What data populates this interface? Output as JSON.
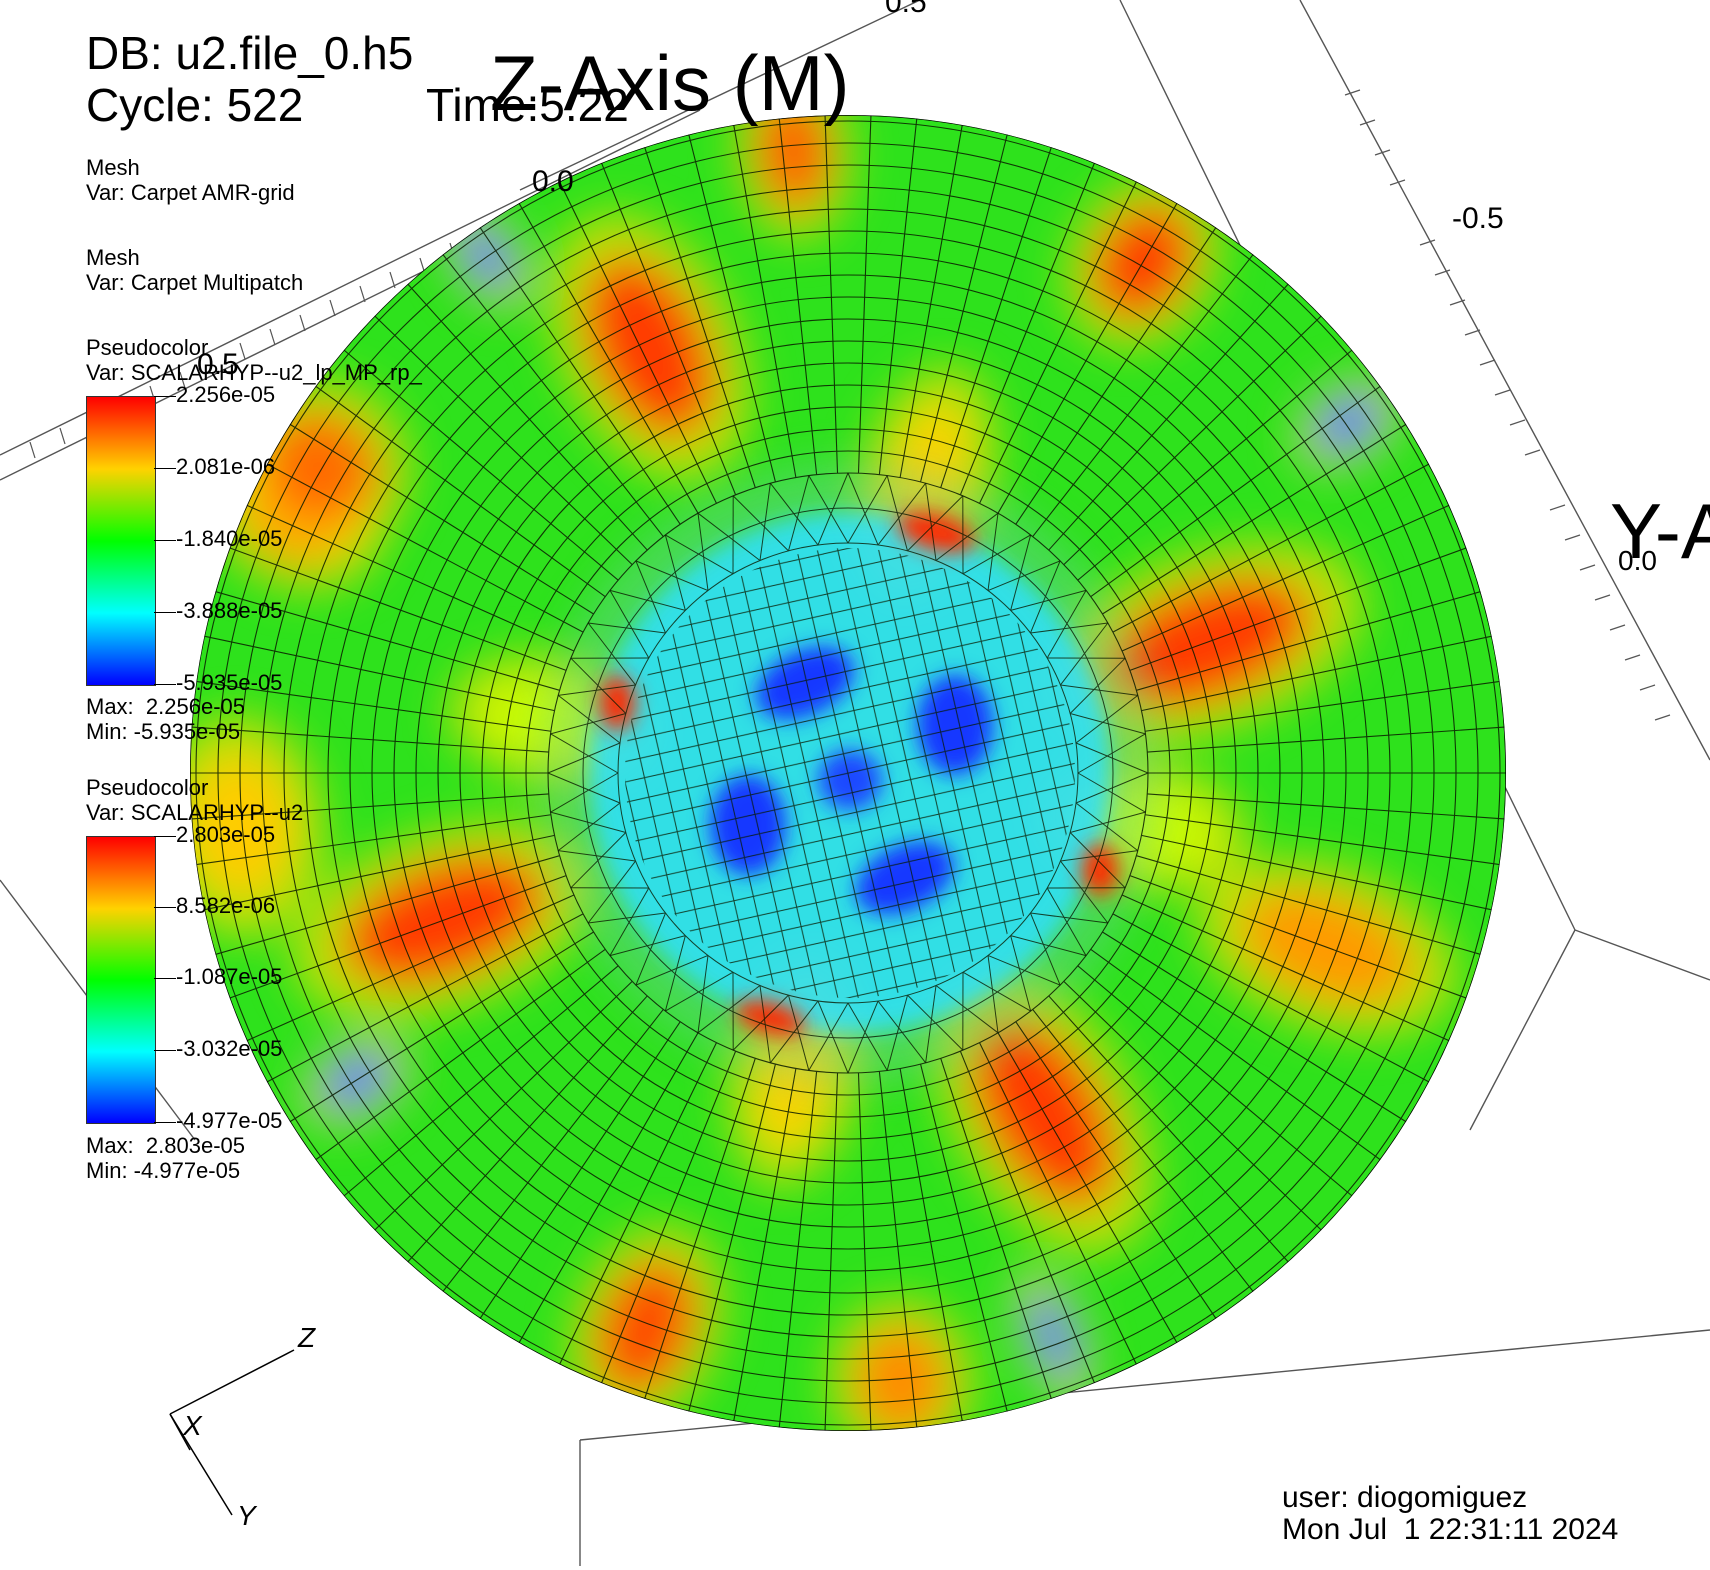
{
  "header": {
    "db": "DB: u2.file_0.h5",
    "cycle": "Cycle: 522",
    "time": "Time:5.22",
    "axis_title": "Z-Axis (M)"
  },
  "plots": [
    {
      "type": "Mesh",
      "var": "Var: Carpet AMR-grid"
    },
    {
      "type": "Mesh",
      "var": "Var: Carpet Multipatch"
    }
  ],
  "legend_a": {
    "type": "Pseudocolor",
    "var": "Var: SCALARHYP--u2_lp_MP_rp_",
    "ticks": [
      "2.256e-05",
      "2.081e-06",
      "-1.840e-05",
      "-3.888e-05",
      "-5.935e-05"
    ],
    "max": "Max:  2.256e-05",
    "min": "Min: -5.935e-05"
  },
  "legend_b": {
    "type": "Pseudocolor",
    "var": "Var: SCALARHYP--u2",
    "ticks": [
      "2.803e-05",
      "8.582e-06",
      "-1.087e-05",
      "-3.032e-05",
      "-4.977e-05"
    ],
    "max": "Max:  2.803e-05",
    "min": "Min: -4.977e-05"
  },
  "axis_labels": {
    "top_partial": "0.5",
    "z_zero": "0.0",
    "z_neg": "-0.5",
    "left_val": "0.5",
    "y_zero": "0.0",
    "y_title": "Y-A"
  },
  "triad": {
    "z": "Z",
    "x": "X",
    "y": "Y"
  },
  "footer": {
    "user": "user: diogomiguez",
    "date": "Mon Jul  1 22:31:11 2024"
  },
  "colors": {
    "red": "#ff0000",
    "yellow": "#ffd200",
    "green": "#00ff00",
    "cyan": "#00ffff",
    "blue": "#0000ff"
  }
}
